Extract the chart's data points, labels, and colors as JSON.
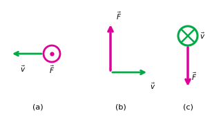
{
  "bg_color": "#ffffff",
  "green_color": "#00aa44",
  "magenta_color": "#dd0099",
  "label_fontsize": 8,
  "case_labels": [
    "(a)",
    "(b)",
    "(c)"
  ]
}
